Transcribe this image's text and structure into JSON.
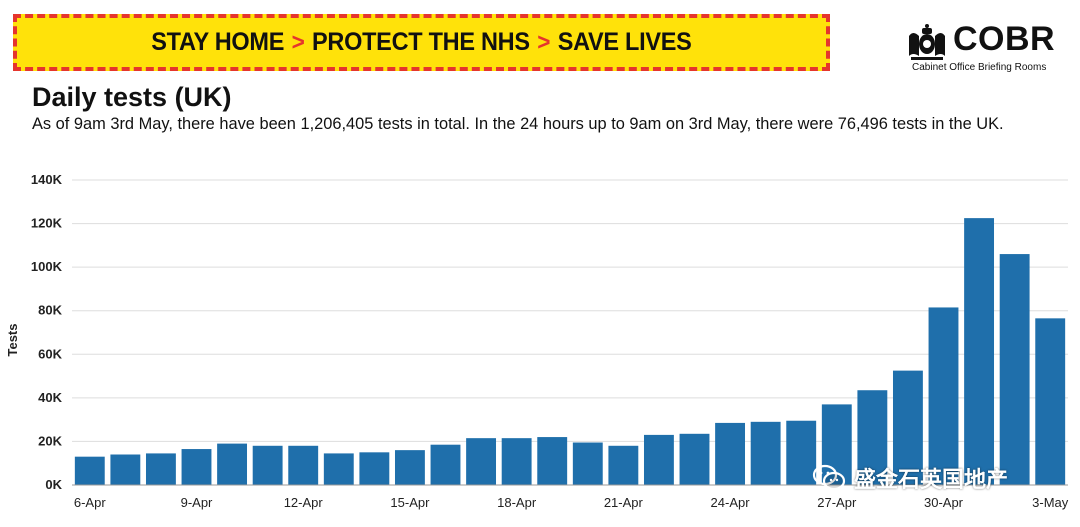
{
  "banner": {
    "part1": "STAY HOME",
    "part2": "PROTECT THE NHS",
    "part3": "SAVE LIVES",
    "separator": ">"
  },
  "logo": {
    "word": "COBR",
    "subtitle": "Cabinet Office Briefing Rooms"
  },
  "watermark": {
    "text": "盛金石英国地产",
    "icon": "wechat-icon"
  },
  "colors": {
    "bar": "#1f6fab",
    "banner_bg": "#ffe20a",
    "banner_accent": "#e5352d",
    "grid": "#dddddd"
  },
  "chart_data": {
    "type": "bar",
    "title": "Daily tests (UK)",
    "subtitle": "As of 9am 3rd May, there have been 1,206,405 tests in total. In the 24 hours up to 9am on 3rd May, there were 76,496 tests in the UK.",
    "ylabel": "Tests",
    "xlabel": "",
    "ylim": [
      0,
      140000
    ],
    "yticks": [
      0,
      20000,
      40000,
      60000,
      80000,
      100000,
      120000,
      140000
    ],
    "ytick_labels": [
      "0K",
      "20K",
      "40K",
      "60K",
      "80K",
      "100K",
      "120K",
      "140K"
    ],
    "grid": true,
    "categories": [
      "6-Apr",
      "7-Apr",
      "8-Apr",
      "9-Apr",
      "10-Apr",
      "11-Apr",
      "12-Apr",
      "13-Apr",
      "14-Apr",
      "15-Apr",
      "16-Apr",
      "17-Apr",
      "18-Apr",
      "19-Apr",
      "20-Apr",
      "21-Apr",
      "22-Apr",
      "23-Apr",
      "24-Apr",
      "25-Apr",
      "26-Apr",
      "27-Apr",
      "28-Apr",
      "29-Apr",
      "30-Apr",
      "1-May",
      "2-May",
      "3-May"
    ],
    "xtick_labels": [
      "6-Apr",
      "9-Apr",
      "12-Apr",
      "15-Apr",
      "18-Apr",
      "21-Apr",
      "24-Apr",
      "27-Apr",
      "30-Apr",
      "3-May"
    ],
    "values": [
      13000,
      14000,
      14500,
      16500,
      19000,
      18000,
      18000,
      14500,
      15000,
      16000,
      18500,
      21500,
      21500,
      22000,
      19500,
      18000,
      23000,
      23500,
      28500,
      29000,
      29500,
      37000,
      43500,
      52500,
      81500,
      122500,
      106000,
      76500
    ]
  }
}
